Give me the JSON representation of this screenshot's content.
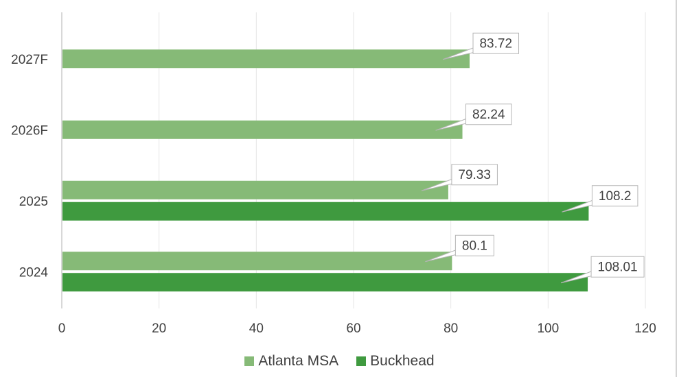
{
  "chart_data": {
    "type": "bar",
    "orientation": "horizontal",
    "title": "",
    "xlabel": "",
    "ylabel": "",
    "categories": [
      "2024",
      "2025",
      "2026F",
      "2027F"
    ],
    "series": [
      {
        "name": "Atlanta MSA",
        "color": "#86ba77",
        "values": [
          80.1,
          79.33,
          82.24,
          83.72
        ]
      },
      {
        "name": "Buckhead",
        "color": "#3f9a3f",
        "values": [
          108.01,
          108.2,
          null,
          null
        ]
      }
    ],
    "data_labels": [
      [
        "80.1",
        "79.33",
        "82.24",
        "83.72"
      ],
      [
        "108.01",
        "108.2",
        "",
        ""
      ]
    ],
    "xlim": [
      0,
      120
    ],
    "xticks": [
      "0",
      "20",
      "40",
      "60",
      "80",
      "100",
      "120"
    ],
    "grid": true,
    "legend": "bottom"
  }
}
